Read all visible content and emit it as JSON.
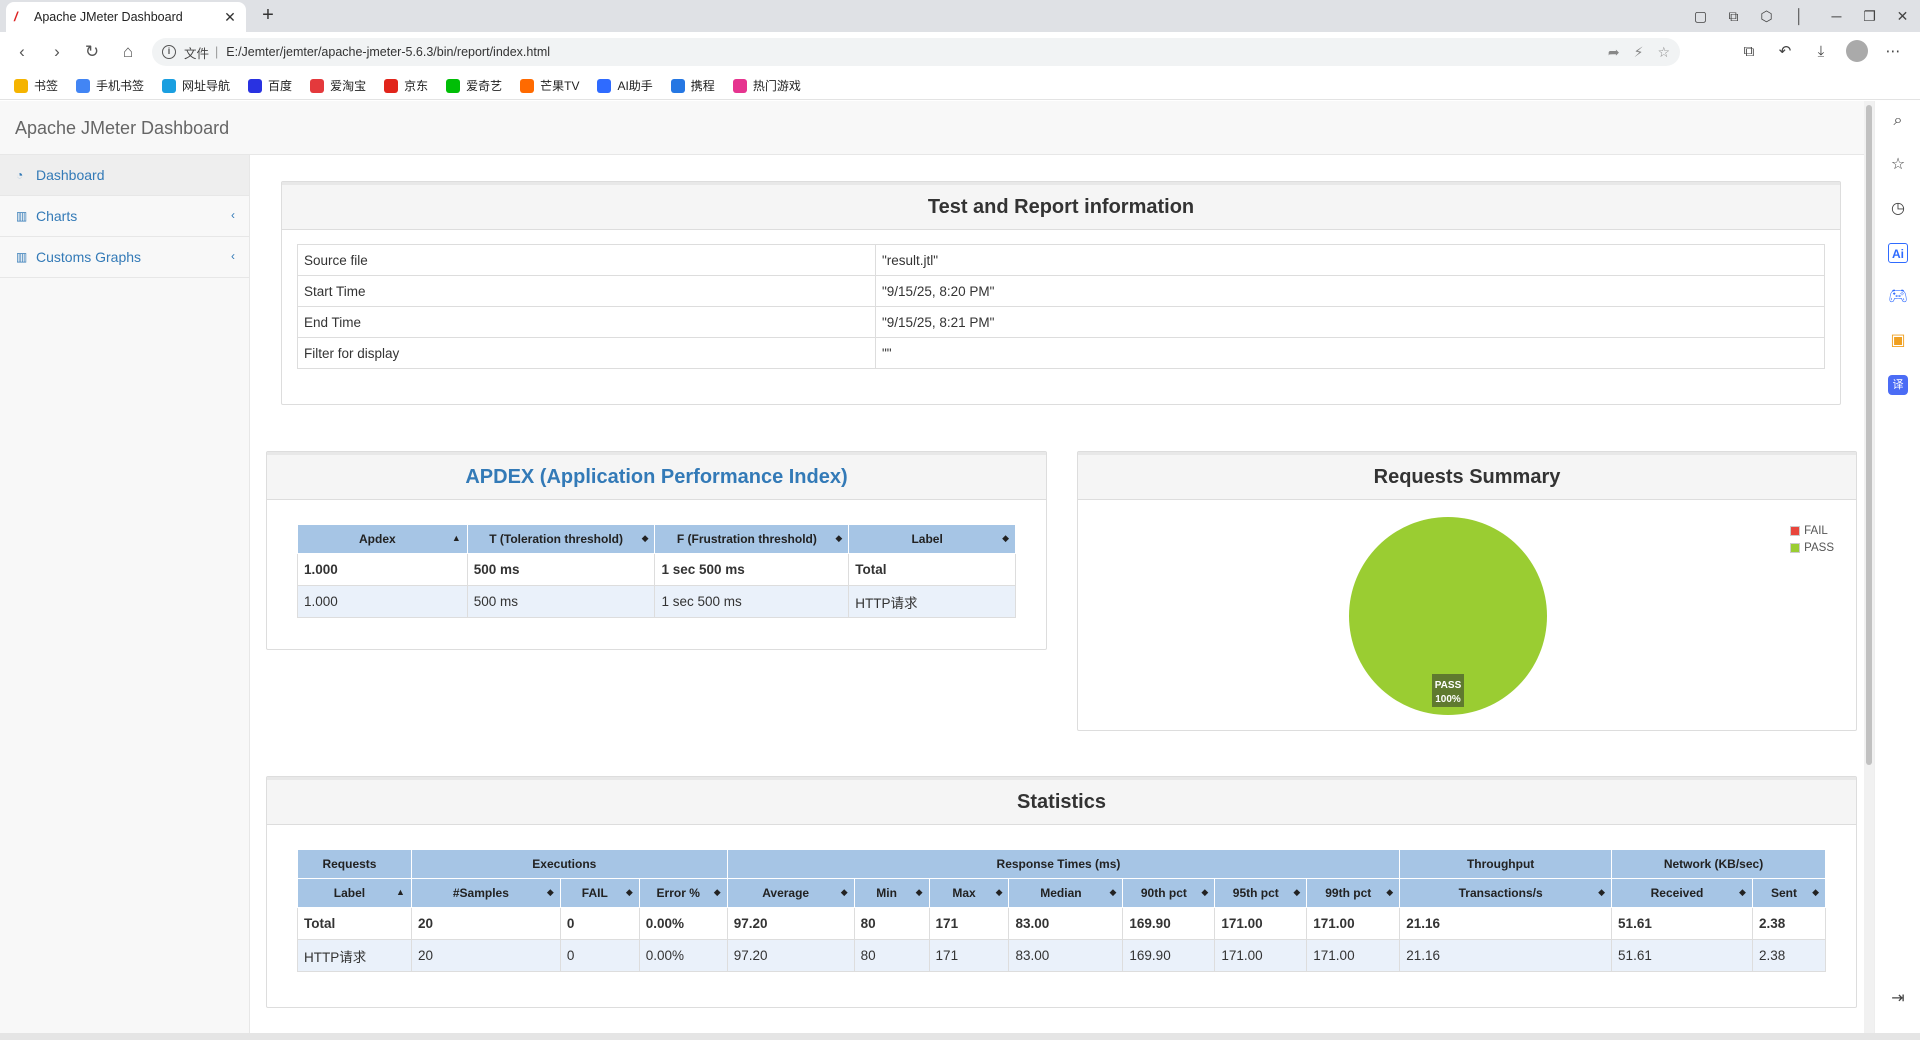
{
  "browser": {
    "tab_title": "Apache JMeter Dashboard",
    "new_tab": "+",
    "address": {
      "protocol": "文件",
      "separator": "|",
      "url": "E:/Jemter/jemter/apache-jmeter-5.6.3/bin/report/index.html"
    },
    "bookmarks": [
      {
        "label": "书签",
        "icon": "star-icon",
        "color": "#f5b400"
      },
      {
        "label": "手机书签",
        "icon": "phone-icon",
        "color": "#4285f4"
      },
      {
        "label": "网址导航",
        "icon": "compass-icon",
        "color": "#1a9fe0"
      },
      {
        "label": "百度",
        "icon": "paw-icon",
        "color": "#2932e1"
      },
      {
        "label": "爱淘宝",
        "icon": "taobao-icon",
        "color": "#e4393c"
      },
      {
        "label": "京东",
        "icon": "jd-icon",
        "color": "#e1251b"
      },
      {
        "label": "爱奇艺",
        "icon": "iqiyi-icon",
        "color": "#00be06"
      },
      {
        "label": "芒果TV",
        "icon": "mango-icon",
        "color": "#ff6a00"
      },
      {
        "label": "AI助手",
        "icon": "ai-icon",
        "color": "#2f6bff"
      },
      {
        "label": "携程",
        "icon": "ctrip-icon",
        "color": "#2577e3"
      },
      {
        "label": "热门游戏",
        "icon": "game-icon",
        "color": "#e6348f"
      }
    ]
  },
  "app": {
    "brand": "Apache JMeter Dashboard"
  },
  "sidebar": {
    "items": [
      {
        "label": "Dashboard",
        "icon": "dashboard-icon"
      },
      {
        "label": "Charts",
        "icon": "bar-chart-icon"
      },
      {
        "label": "Customs Graphs",
        "icon": "bar-chart-icon"
      }
    ]
  },
  "report_info": {
    "title": "Test and Report information",
    "rows": [
      {
        "key": "Source file",
        "value": "\"result.jtl\""
      },
      {
        "key": "Start Time",
        "value": "\"9/15/25, 8:20 PM\""
      },
      {
        "key": "End Time",
        "value": "\"9/15/25, 8:21 PM\""
      },
      {
        "key": "Filter for display",
        "value": "\"\""
      }
    ]
  },
  "apdex": {
    "title": "APDEX (Application Performance Index)",
    "headers": [
      "Apdex",
      "T (Toleration threshold)",
      "F (Frustration threshold)",
      "Label"
    ],
    "rows": [
      [
        "1.000",
        "500 ms",
        "1 sec 500 ms",
        "Total"
      ],
      [
        "1.000",
        "500 ms",
        "1 sec 500 ms",
        "HTTP请求"
      ]
    ]
  },
  "requests_summary": {
    "title": "Requests Summary",
    "legend": [
      {
        "name": "FAIL",
        "color": "#e8453c"
      },
      {
        "name": "PASS",
        "color": "#9acd32"
      }
    ],
    "pie_label_name": "PASS",
    "pie_label_pct": "100%"
  },
  "chart_data": {
    "type": "pie",
    "title": "Requests Summary",
    "categories": [
      "FAIL",
      "PASS"
    ],
    "values": [
      0,
      100
    ],
    "legend_position": "top-right"
  },
  "statistics": {
    "title": "Statistics",
    "groups": [
      {
        "label": "Requests",
        "span": 1
      },
      {
        "label": "Executions",
        "span": 3
      },
      {
        "label": "Response Times (ms)",
        "span": 7
      },
      {
        "label": "Throughput",
        "span": 1
      },
      {
        "label": "Network (KB/sec)",
        "span": 2
      }
    ],
    "headers": [
      "Label",
      "#Samples",
      "FAIL",
      "Error %",
      "Average",
      "Min",
      "Max",
      "Median",
      "90th pct",
      "95th pct",
      "99th pct",
      "Transactions/s",
      "Received",
      "Sent"
    ],
    "rows": [
      [
        "Total",
        "20",
        "0",
        "0.00%",
        "97.20",
        "80",
        "171",
        "83.00",
        "169.90",
        "171.00",
        "171.00",
        "21.16",
        "51.61",
        "2.38"
      ],
      [
        "HTTP请求",
        "20",
        "0",
        "0.00%",
        "97.20",
        "80",
        "171",
        "83.00",
        "169.90",
        "171.00",
        "171.00",
        "21.16",
        "51.61",
        "2.38"
      ]
    ]
  }
}
